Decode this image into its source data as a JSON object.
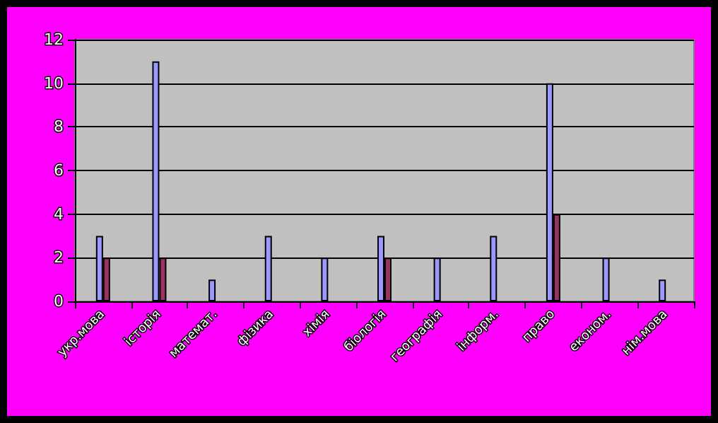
{
  "chart_data": {
    "type": "bar",
    "categories": [
      "укр.мова",
      "історія",
      "математ.",
      "фізика",
      "хімія",
      "біологія",
      "географія",
      "інформ.",
      "право",
      "економ.",
      "нім.мова"
    ],
    "series": [
      {
        "color": "#9999ff",
        "values": [
          3,
          11,
          1,
          3,
          2,
          3,
          2,
          3,
          10,
          2,
          1
        ]
      },
      {
        "color": "#993366",
        "values": [
          2,
          2,
          null,
          null,
          null,
          2,
          null,
          null,
          4,
          null,
          null
        ]
      }
    ],
    "ylim": [
      0,
      12
    ],
    "yticks": [
      0,
      2,
      4,
      6,
      8,
      10,
      12
    ],
    "grid": "y"
  }
}
